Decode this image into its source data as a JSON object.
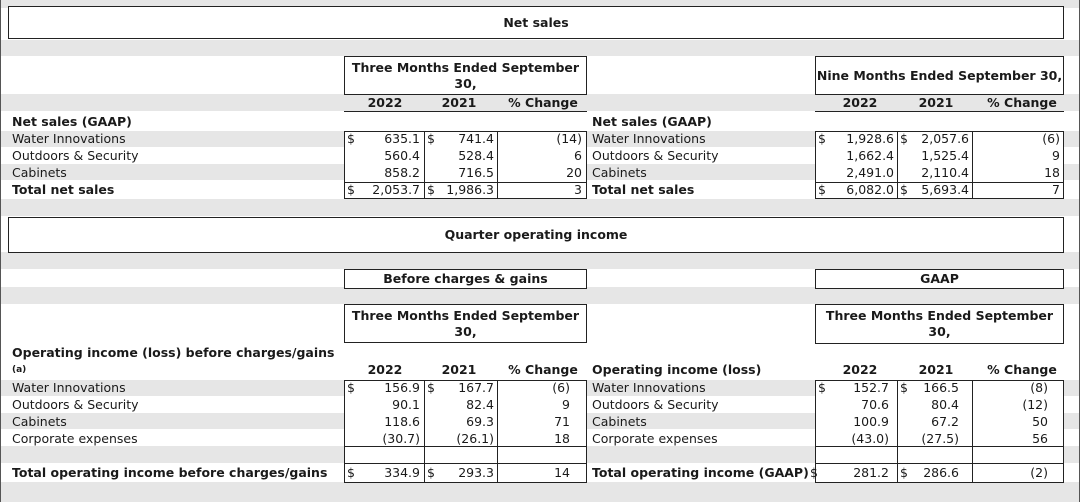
{
  "sections": {
    "net_sales_title": "Net sales",
    "quarter_op_title": "Quarter operating income"
  },
  "net_sales": {
    "q_header": "Three Months Ended September 30,",
    "n_header": "Nine Months Ended September 30,",
    "col_2022": "2022",
    "col_2021": "2021",
    "col_change": "% Change",
    "label_header": "Net sales (GAAP)",
    "rows": [
      {
        "label": "Water Innovations",
        "q2022": "635.1",
        "q2021": "741.4",
        "qchg": "(14)",
        "n2022": "1,928.6",
        "n2021": "2,057.6",
        "nchg": "(6)"
      },
      {
        "label": "Outdoors & Security",
        "q2022": "560.4",
        "q2021": "528.4",
        "qchg": "6",
        "n2022": "1,662.4",
        "n2021": "1,525.4",
        "nchg": "9"
      },
      {
        "label": "Cabinets",
        "q2022": "858.2",
        "q2021": "716.5",
        "qchg": "20",
        "n2022": "2,491.0",
        "n2021": "2,110.4",
        "nchg": "18"
      }
    ],
    "total": {
      "label": "Total net sales",
      "q2022": "2,053.7",
      "q2021": "1,986.3",
      "qchg": "3",
      "n2022": "6,082.0",
      "n2021": "5,693.4",
      "nchg": "7"
    },
    "dollar": "$"
  },
  "operating": {
    "before_title": "Before charges & gains",
    "gaap_title": "GAAP",
    "left_header": "Three Months Ended September 30,",
    "right_header": "Three Months Ended September 30,",
    "left_label_header": "Operating income (loss) before charges/gains",
    "left_label_sub": "(a)",
    "right_label_header": "Operating income (loss)",
    "col_2022": "2022",
    "col_2021": "2021",
    "col_change": "% Change",
    "rows": [
      {
        "label": "Water Innovations",
        "b2022": "156.9",
        "b2021": "167.7",
        "bchg": "(6)",
        "g2022": "152.7",
        "g2021": "166.5",
        "gchg": "(8)"
      },
      {
        "label": "Outdoors & Security",
        "b2022": "90.1",
        "b2021": "82.4",
        "bchg": "9",
        "g2022": "70.6",
        "g2021": "80.4",
        "gchg": "(12)"
      },
      {
        "label": "Cabinets",
        "b2022": "118.6",
        "b2021": "69.3",
        "bchg": "71",
        "g2022": "100.9",
        "g2021": "67.2",
        "gchg": "50"
      },
      {
        "label": "Corporate expenses",
        "b2022": "(30.7)",
        "b2021": "(26.1)",
        "bchg": "18",
        "g2022": "(43.0)",
        "g2021": "(27.5)",
        "gchg": "56"
      }
    ],
    "total_left": {
      "label": "Total operating income before charges/gains",
      "v2022": "334.9",
      "v2021": "293.3",
      "chg": "14"
    },
    "total_right": {
      "label": "Total operating income (GAAP)",
      "v2022": "281.2",
      "v2021": "286.6",
      "chg": "(2)"
    },
    "dollar": "$"
  }
}
